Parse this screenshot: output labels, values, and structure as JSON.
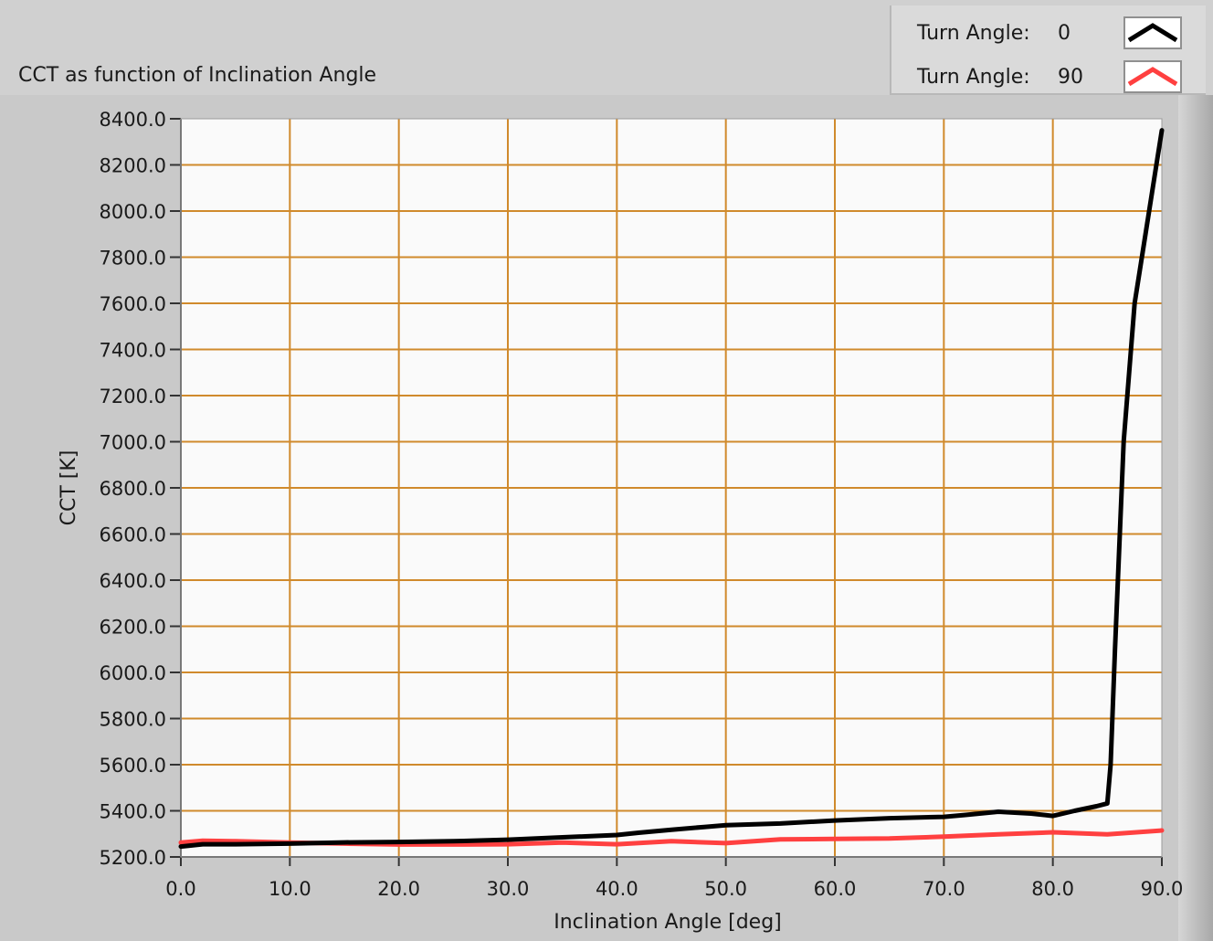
{
  "chart_data": {
    "type": "line",
    "title": "CCT as function of Inclination Angle",
    "xlabel": "Inclination Angle [deg]",
    "ylabel": "CCT [K]",
    "xlim": [
      0,
      90
    ],
    "ylim": [
      5200,
      8400
    ],
    "x_ticks": [
      "0.0",
      "10.0",
      "20.0",
      "30.0",
      "40.0",
      "50.0",
      "60.0",
      "70.0",
      "80.0",
      "90.0"
    ],
    "y_ticks": [
      "5200.0",
      "5400.0",
      "5600.0",
      "5800.0",
      "6000.0",
      "6200.0",
      "6400.0",
      "6600.0",
      "6800.0",
      "7000.0",
      "7200.0",
      "7400.0",
      "7600.0",
      "7800.0",
      "8000.0",
      "8200.0",
      "8400.0"
    ],
    "x_tick_values": [
      0,
      10,
      20,
      30,
      40,
      50,
      60,
      70,
      80,
      90
    ],
    "y_tick_values": [
      5200,
      5400,
      5600,
      5800,
      6000,
      6200,
      6400,
      6600,
      6800,
      7000,
      7200,
      7400,
      7600,
      7800,
      8000,
      8200,
      8400
    ],
    "grid": true,
    "legend_position": "top-right",
    "colors": {
      "plot_bg": "#fafafa",
      "grid": "#d08a2c"
    },
    "series": [
      {
        "legend_label": "Turn Angle:",
        "legend_value": "0",
        "color": "#000000",
        "x": [
          0,
          2,
          5,
          10,
          15,
          20,
          25,
          30,
          35,
          40,
          42,
          45,
          48,
          50,
          55,
          60,
          65,
          70,
          72,
          75,
          78,
          80,
          82,
          84,
          85,
          85.3,
          85.7,
          86.5,
          87.5,
          88.5,
          89.5,
          90
        ],
        "y": [
          5245,
          5255,
          5255,
          5258,
          5263,
          5265,
          5268,
          5275,
          5285,
          5295,
          5305,
          5318,
          5330,
          5338,
          5345,
          5358,
          5368,
          5374,
          5382,
          5396,
          5388,
          5378,
          5400,
          5420,
          5432,
          5600,
          6100,
          7000,
          7600,
          7900,
          8200,
          8350
        ]
      },
      {
        "legend_label": "Turn Angle:",
        "legend_value": "90",
        "color": "#ff4040",
        "x": [
          0,
          2,
          5,
          10,
          15,
          20,
          25,
          30,
          35,
          40,
          45,
          50,
          55,
          60,
          65,
          70,
          75,
          80,
          85,
          90
        ],
        "y": [
          5262,
          5270,
          5268,
          5262,
          5258,
          5254,
          5254,
          5255,
          5262,
          5255,
          5268,
          5260,
          5276,
          5278,
          5280,
          5288,
          5298,
          5307,
          5298,
          5315
        ]
      }
    ]
  }
}
